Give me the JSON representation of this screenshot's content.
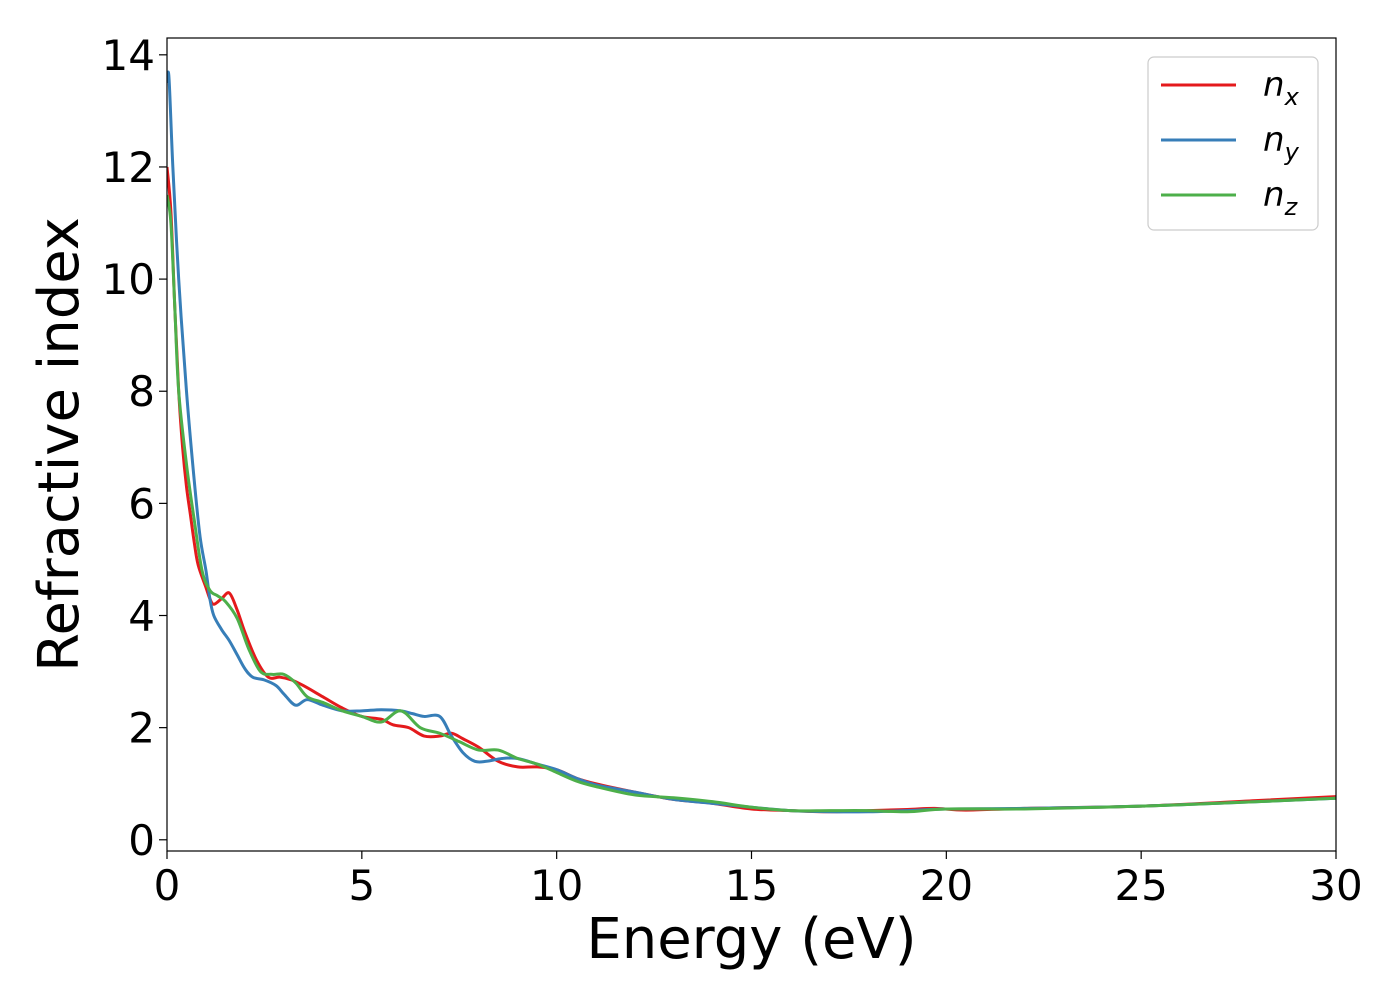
{
  "chart_data": {
    "type": "line",
    "title": "",
    "xlabel": "Energy (eV)",
    "ylabel": "Refractive index",
    "xlim": [
      0,
      30
    ],
    "ylim": [
      -0.2,
      14.3
    ],
    "xticks": [
      0,
      5,
      10,
      15,
      20,
      25,
      30
    ],
    "yticks": [
      0,
      2,
      4,
      6,
      8,
      10,
      12,
      14
    ],
    "grid": false,
    "legend_position": "top-right",
    "series": [
      {
        "name": "n_x",
        "label_base": "n",
        "label_sub": "x",
        "color": "#e41a1c",
        "x": [
          0,
          0.1,
          0.2,
          0.3,
          0.4,
          0.5,
          0.6,
          0.7,
          0.8,
          1.0,
          1.1,
          1.2,
          1.4,
          1.6,
          1.8,
          2.0,
          2.3,
          2.6,
          2.9,
          3.2,
          3.5,
          4.0,
          4.5,
          5.0,
          5.5,
          5.8,
          6.2,
          6.6,
          7.0,
          7.3,
          7.6,
          8.0,
          8.5,
          9.0,
          9.5,
          10.0,
          10.5,
          11.0,
          12.0,
          13.0,
          14.0,
          15.0,
          16.0,
          17.0,
          18.0,
          19.0,
          19.7,
          20.5,
          22.0,
          25.0,
          28.0,
          30.0
        ],
        "y": [
          12.0,
          11.2,
          9.5,
          8.0,
          7.0,
          6.3,
          5.8,
          5.3,
          4.9,
          4.5,
          4.3,
          4.2,
          4.3,
          4.4,
          4.1,
          3.7,
          3.2,
          2.9,
          2.9,
          2.85,
          2.75,
          2.55,
          2.35,
          2.2,
          2.15,
          2.05,
          2.0,
          1.85,
          1.85,
          1.9,
          1.8,
          1.65,
          1.4,
          1.3,
          1.3,
          1.25,
          1.1,
          1.0,
          0.85,
          0.72,
          0.65,
          0.55,
          0.52,
          0.5,
          0.52,
          0.54,
          0.56,
          0.53,
          0.56,
          0.6,
          0.7,
          0.77
        ]
      },
      {
        "name": "n_y",
        "label_base": "n",
        "label_sub": "y",
        "color": "#377eb8",
        "x": [
          0,
          0.05,
          0.15,
          0.3,
          0.5,
          0.7,
          0.85,
          1.0,
          1.1,
          1.2,
          1.4,
          1.6,
          1.8,
          2.0,
          2.2,
          2.5,
          2.8,
          3.0,
          3.3,
          3.6,
          4.0,
          4.5,
          5.0,
          5.5,
          6.0,
          6.3,
          6.6,
          7.0,
          7.3,
          7.6,
          7.9,
          8.2,
          8.6,
          9.0,
          9.5,
          10.0,
          10.5,
          11.0,
          12.0,
          13.0,
          14.0,
          15.0,
          16.0,
          17.0,
          18.0,
          19.0,
          20.0,
          22.0,
          25.0,
          28.0,
          30.0
        ],
        "y": [
          13.5,
          13.6,
          12.0,
          10.0,
          8.0,
          6.4,
          5.4,
          4.8,
          4.3,
          4.0,
          3.75,
          3.55,
          3.3,
          3.05,
          2.9,
          2.85,
          2.75,
          2.6,
          2.4,
          2.5,
          2.4,
          2.3,
          2.3,
          2.32,
          2.3,
          2.25,
          2.2,
          2.2,
          1.85,
          1.55,
          1.4,
          1.4,
          1.45,
          1.45,
          1.35,
          1.25,
          1.1,
          0.98,
          0.85,
          0.72,
          0.65,
          0.58,
          0.52,
          0.5,
          0.5,
          0.52,
          0.55,
          0.56,
          0.6,
          0.68,
          0.74
        ]
      },
      {
        "name": "n_z",
        "label_base": "n",
        "label_sub": "z",
        "color": "#4daf4a",
        "x": [
          0,
          0.1,
          0.2,
          0.3,
          0.5,
          0.7,
          0.9,
          1.1,
          1.3,
          1.5,
          1.8,
          2.1,
          2.4,
          2.7,
          3.0,
          3.3,
          3.6,
          4.0,
          4.5,
          5.0,
          5.5,
          6.0,
          6.5,
          7.0,
          7.5,
          8.0,
          8.5,
          9.0,
          9.5,
          10.0,
          10.5,
          11.0,
          12.0,
          13.0,
          14.0,
          15.0,
          16.0,
          17.0,
          18.0,
          19.0,
          20.0,
          22.0,
          25.0,
          28.0,
          30.0
        ],
        "y": [
          11.5,
          11.0,
          9.5,
          8.0,
          6.7,
          5.7,
          4.8,
          4.45,
          4.35,
          4.25,
          3.95,
          3.4,
          3.0,
          2.95,
          2.95,
          2.8,
          2.55,
          2.45,
          2.3,
          2.2,
          2.1,
          2.3,
          2.0,
          1.9,
          1.75,
          1.6,
          1.6,
          1.45,
          1.35,
          1.2,
          1.05,
          0.95,
          0.8,
          0.75,
          0.68,
          0.58,
          0.52,
          0.52,
          0.52,
          0.5,
          0.55,
          0.55,
          0.6,
          0.68,
          0.74
        ]
      }
    ]
  }
}
